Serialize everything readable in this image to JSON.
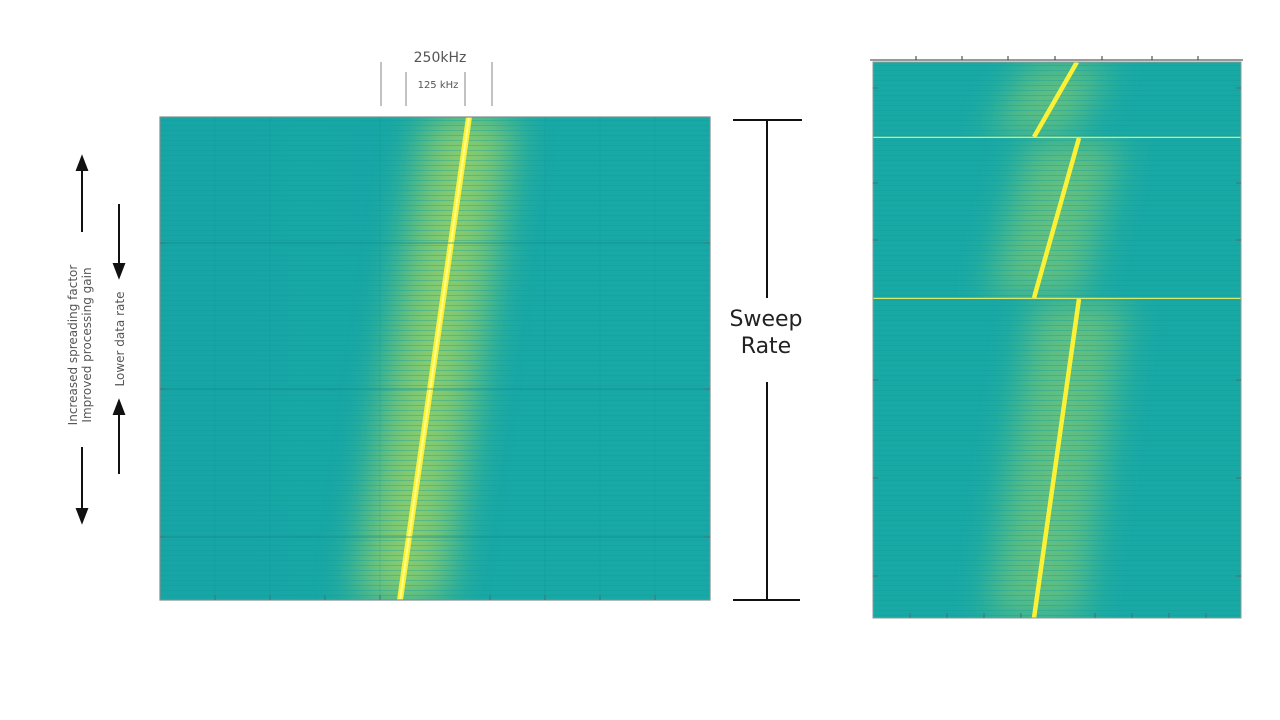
{
  "bandwidth_labels": {
    "outer": "250kHz",
    "inner": "125 kHz"
  },
  "sweep_label": {
    "line1": "Sweep",
    "line2": "Rate"
  },
  "left_annotations": {
    "line1": "Increased spreading factor",
    "line2": "Improved processing gain",
    "line3": "Lower data rate"
  },
  "colors": {
    "background_teal": "#1aaba4",
    "chirp_yellow": "#f5ef3a",
    "glow_green": "#8fce5a",
    "arrow_black": "#111111",
    "frame_gray": "#9a9a9a"
  },
  "spectrograms": {
    "main": {
      "description_visible": false
    },
    "segments": 3
  }
}
